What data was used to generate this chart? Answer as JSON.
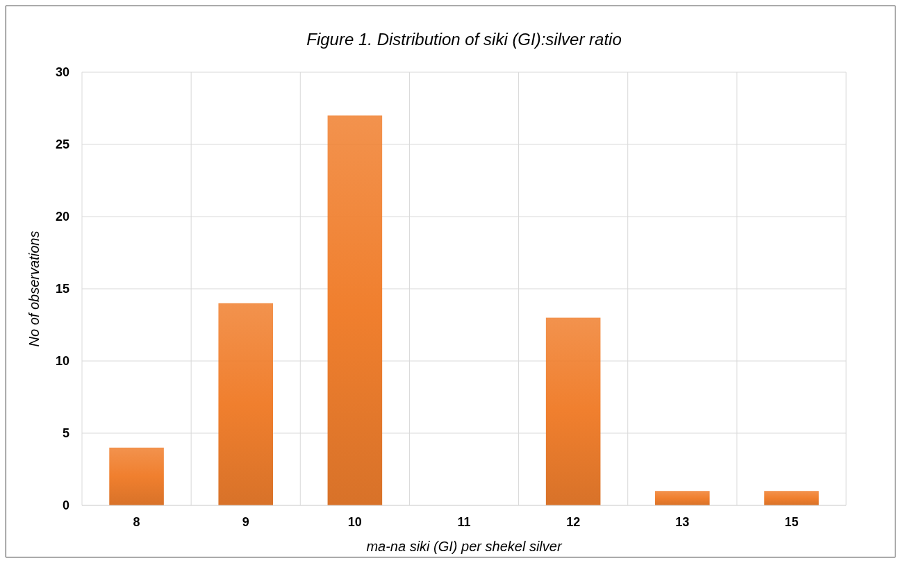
{
  "chart_data": {
    "type": "bar",
    "title": "Figure 1. Distribution of siki (GI):silver ratio",
    "xlabel": "ma-na siki (GI) per shekel silver",
    "ylabel": "No of observations",
    "categories": [
      "8",
      "9",
      "10",
      "11",
      "12",
      "13",
      "15"
    ],
    "values": [
      4,
      14,
      27,
      0,
      13,
      1,
      1
    ],
    "color": "#f07f2e",
    "ylim": [
      0,
      30
    ],
    "yticks": [
      0,
      5,
      10,
      15,
      20,
      25,
      30
    ],
    "grid": true
  }
}
